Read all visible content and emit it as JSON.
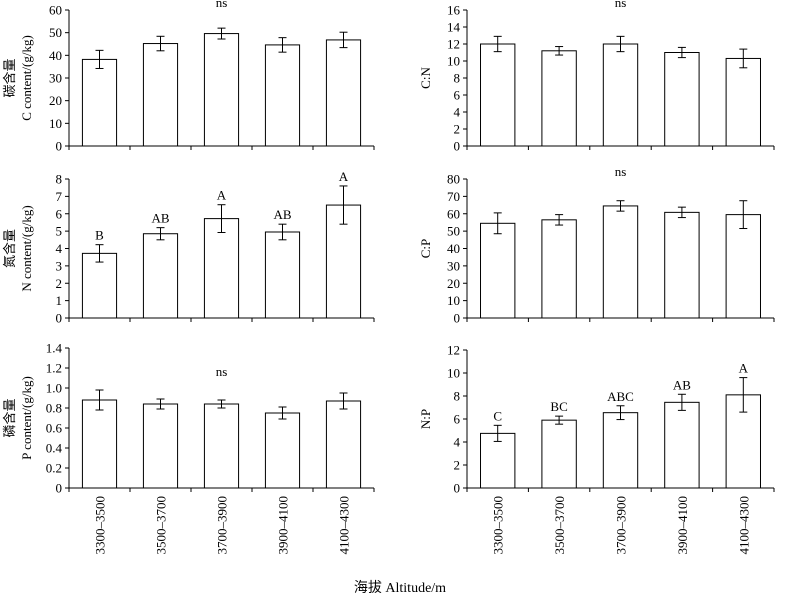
{
  "figure": {
    "x_title": "海拔 Altitude/m"
  },
  "chart_data": [
    {
      "id": "c",
      "type": "bar",
      "categories": [
        "3300–3500",
        "3500–3700",
        "3700–3900",
        "3900–4100",
        "4100–4300"
      ],
      "values": [
        38.2,
        45.2,
        49.6,
        44.6,
        46.8
      ],
      "errors": [
        4.0,
        3.2,
        2.4,
        3.2,
        3.4
      ],
      "significance": [
        "",
        "",
        "",
        "",
        ""
      ],
      "annotation": "ns",
      "ylabel_cn": "碳含量",
      "ylabel_en": "C content/(g/kg)",
      "ylim": [
        0,
        60
      ],
      "yticks": [
        0,
        10,
        20,
        30,
        40,
        50,
        60
      ],
      "tick_labels": [
        "0",
        "10",
        "20",
        "30",
        "40",
        "50",
        "60"
      ]
    },
    {
      "id": "cn",
      "type": "bar",
      "categories": [
        "3300–3500",
        "3500–3700",
        "3700–3900",
        "3900–4100",
        "4100–4300"
      ],
      "values": [
        12.0,
        11.2,
        12.0,
        11.0,
        10.3
      ],
      "errors": [
        0.9,
        0.5,
        0.9,
        0.6,
        1.1
      ],
      "significance": [
        "",
        "",
        "",
        "",
        ""
      ],
      "annotation": "ns",
      "ylabel_cn": "",
      "ylabel_en": "C:N",
      "ylim": [
        0,
        16
      ],
      "yticks": [
        0,
        2,
        4,
        6,
        8,
        10,
        12,
        14,
        16
      ],
      "tick_labels": [
        "0",
        "2",
        "4",
        "6",
        "8",
        "10",
        "12",
        "14",
        "16"
      ]
    },
    {
      "id": "n",
      "type": "bar",
      "categories": [
        "3300–3500",
        "3500–3700",
        "3700–3900",
        "3900–4100",
        "4100–4300"
      ],
      "values": [
        3.72,
        4.85,
        5.72,
        4.95,
        6.5
      ],
      "errors": [
        0.5,
        0.35,
        0.8,
        0.45,
        1.1
      ],
      "significance": [
        "B",
        "AB",
        "A",
        "AB",
        "A"
      ],
      "annotation": "",
      "ylabel_cn": "氮含量",
      "ylabel_en": "N content/(g/kg)",
      "ylim": [
        0,
        8
      ],
      "yticks": [
        0,
        1,
        2,
        3,
        4,
        5,
        6,
        7,
        8
      ],
      "tick_labels": [
        "0",
        "1",
        "2",
        "3",
        "4",
        "5",
        "6",
        "7",
        "8"
      ]
    },
    {
      "id": "cp",
      "type": "bar",
      "categories": [
        "3300–3500",
        "3500–3700",
        "3700–3900",
        "3900–4100",
        "4100–4300"
      ],
      "values": [
        54.5,
        56.5,
        64.5,
        60.8,
        59.5
      ],
      "errors": [
        6.0,
        3.0,
        3.0,
        3.0,
        8.0
      ],
      "significance": [
        "",
        "",
        "",
        "",
        ""
      ],
      "annotation": "ns",
      "ylabel_cn": "",
      "ylabel_en": "C:P",
      "ylim": [
        0,
        80
      ],
      "yticks": [
        0,
        10,
        20,
        30,
        40,
        50,
        60,
        70,
        80
      ],
      "tick_labels": [
        "0",
        "10",
        "20",
        "30",
        "40",
        "50",
        "60",
        "70",
        "80"
      ]
    },
    {
      "id": "p",
      "type": "bar",
      "categories": [
        "3300–3500",
        "3500–3700",
        "3700–3900",
        "3900–4100",
        "4100–4300"
      ],
      "values": [
        0.88,
        0.84,
        0.84,
        0.75,
        0.87
      ],
      "errors": [
        0.1,
        0.05,
        0.04,
        0.06,
        0.08
      ],
      "significance": [
        "",
        "",
        "",
        "",
        ""
      ],
      "annotation": "ns",
      "ylabel_cn": "磷含量",
      "ylabel_en": "P content/(g/kg)",
      "ylim": [
        0,
        1.4
      ],
      "yticks": [
        0,
        0.2,
        0.4,
        0.6,
        0.8,
        1.0,
        1.2,
        1.4
      ],
      "tick_labels": [
        "0",
        "0.2",
        "0.4",
        "0.6",
        "0.8",
        "1.0",
        "1.2",
        "1.4"
      ]
    },
    {
      "id": "np",
      "type": "bar",
      "categories": [
        "3300–3500",
        "3500–3700",
        "3700–3900",
        "3900–4100",
        "4100–4300"
      ],
      "values": [
        4.75,
        5.9,
        6.55,
        7.45,
        8.1
      ],
      "errors": [
        0.7,
        0.35,
        0.6,
        0.7,
        1.5
      ],
      "significance": [
        "C",
        "BC",
        "ABC",
        "AB",
        "A"
      ],
      "annotation": "",
      "ylabel_cn": "",
      "ylabel_en": "N:P",
      "ylim": [
        0,
        12
      ],
      "yticks": [
        0,
        2,
        4,
        6,
        8,
        10,
        12
      ],
      "tick_labels": [
        "0",
        "2",
        "4",
        "6",
        "8",
        "10",
        "12"
      ]
    }
  ]
}
